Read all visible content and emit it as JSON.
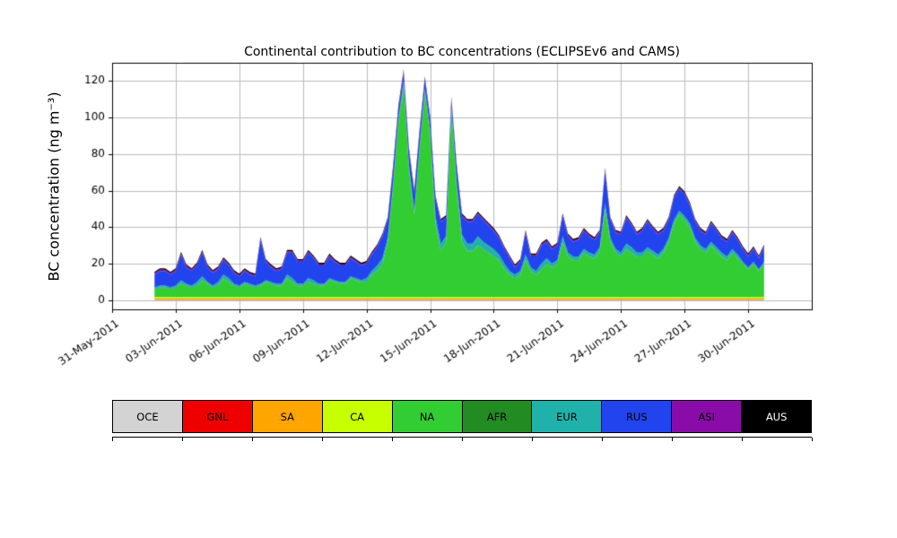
{
  "chart_data": {
    "type": "area",
    "stacked": true,
    "title": "Continental contribution to BC concentrations (ECLIPSEv6 and CAMS)",
    "ylabel": "BC concentration (ng m⁻³)",
    "xlabel": "",
    "grid": true,
    "legend_position": "bottom",
    "n_points": 116,
    "x_start_day": 2,
    "x_step_days": 0.25,
    "xlim_days": [
      0,
      33
    ],
    "ylim": [
      -5,
      130
    ],
    "yticks": [
      0,
      20,
      40,
      60,
      80,
      100,
      120
    ],
    "xticks": {
      "days": [
        0,
        3,
        6,
        9,
        12,
        15,
        18,
        21,
        24,
        27,
        30
      ],
      "labels": [
        "31-May-2011",
        "03-Jun-2011",
        "06-Jun-2011",
        "09-Jun-2011",
        "12-Jun-2011",
        "15-Jun-2011",
        "18-Jun-2011",
        "21-Jun-2011",
        "24-Jun-2011",
        "27-Jun-2011",
        "30-Jun-2011"
      ]
    },
    "series": [
      {
        "name": "OCE",
        "color": "#d3d3d3",
        "values": 0.3
      },
      {
        "name": "GNL",
        "color": "#ee0000",
        "values": 0.1
      },
      {
        "name": "SA",
        "color": "#ffa500",
        "values": 0.5
      },
      {
        "name": "CA",
        "color": "#c8ff00",
        "values": 0.8
      },
      {
        "name": "NA",
        "color": "#32cd32",
        "values": [
          4,
          5,
          5,
          4,
          5,
          7,
          6,
          5,
          6,
          9,
          7,
          5,
          6,
          10,
          8,
          6,
          5,
          7,
          6,
          5,
          6,
          8,
          7,
          6,
          6,
          10,
          8,
          6,
          6,
          8,
          7,
          6,
          6,
          9,
          8,
          7,
          7,
          10,
          9,
          8,
          8,
          12,
          14,
          18,
          30,
          60,
          95,
          116,
          70,
          45,
          80,
          112,
          88,
          40,
          25,
          30,
          102,
          60,
          30,
          25,
          25,
          28,
          26,
          24,
          22,
          20,
          15,
          12,
          10,
          12,
          20,
          14,
          12,
          15,
          18,
          16,
          18,
          30,
          22,
          20,
          20,
          24,
          22,
          21,
          25,
          48,
          30,
          24,
          22,
          26,
          24,
          22,
          22,
          25,
          23,
          21,
          24,
          30,
          40,
          45,
          42,
          38,
          30,
          26,
          24,
          28,
          25,
          22,
          20,
          24,
          21,
          18,
          15,
          18,
          14,
          18
        ]
      },
      {
        "name": "AFR",
        "color": "#228b22",
        "values": 0.3
      },
      {
        "name": "EUR",
        "color": "#20b2aa",
        "values": [
          1,
          1,
          1,
          1,
          1,
          2,
          1,
          1,
          2,
          2,
          1,
          1,
          2,
          2,
          2,
          1,
          1,
          1,
          1,
          1,
          1,
          1,
          1,
          1,
          1,
          2,
          2,
          1,
          1,
          2,
          2,
          1,
          1,
          1,
          1,
          1,
          1,
          1,
          1,
          1,
          2,
          2,
          3,
          3,
          2,
          2,
          2,
          2,
          2,
          2,
          2,
          2,
          3,
          4,
          4,
          3,
          2,
          3,
          4,
          4,
          4,
          5,
          4,
          4,
          4,
          3,
          3,
          2,
          2,
          2,
          3,
          2,
          2,
          3,
          3,
          2,
          2,
          3,
          2,
          2,
          2,
          2,
          2,
          2,
          2,
          3,
          2,
          2,
          2,
          3,
          3,
          2,
          2,
          2,
          2,
          2,
          2,
          2,
          2,
          2,
          2,
          2,
          2,
          2,
          2,
          2,
          2,
          2,
          2,
          2,
          2,
          1,
          1,
          1,
          1,
          1
        ]
      },
      {
        "name": "RUS",
        "color": "#2244ee",
        "values": [
          7,
          8,
          8,
          7,
          8,
          14,
          9,
          8,
          9,
          13,
          8,
          7,
          7,
          8,
          7,
          6,
          5,
          6,
          5,
          5,
          24,
          10,
          8,
          7,
          8,
          12,
          14,
          12,
          12,
          14,
          12,
          10,
          10,
          12,
          10,
          9,
          9,
          10,
          9,
          8,
          8,
          9,
          10,
          12,
          10,
          8,
          6,
          5,
          8,
          10,
          8,
          5,
          6,
          10,
          12,
          10,
          4,
          8,
          10,
          12,
          12,
          12,
          12,
          11,
          10,
          9,
          8,
          7,
          4,
          5,
          12,
          6,
          8,
          10,
          9,
          8,
          8,
          11,
          9,
          8,
          9,
          10,
          9,
          8,
          8,
          18,
          10,
          9,
          10,
          14,
          12,
          10,
          12,
          14,
          12,
          11,
          10,
          10,
          12,
          12,
          12,
          10,
          9,
          8,
          8,
          10,
          9,
          8,
          8,
          9,
          8,
          7,
          6,
          7,
          6,
          8
        ]
      },
      {
        "name": "ASI",
        "color": "#8a0ca8",
        "values": 0.7
      },
      {
        "name": "AUS",
        "color": "#000000",
        "values": 0.8,
        "label_color": "#ffffff"
      }
    ]
  }
}
